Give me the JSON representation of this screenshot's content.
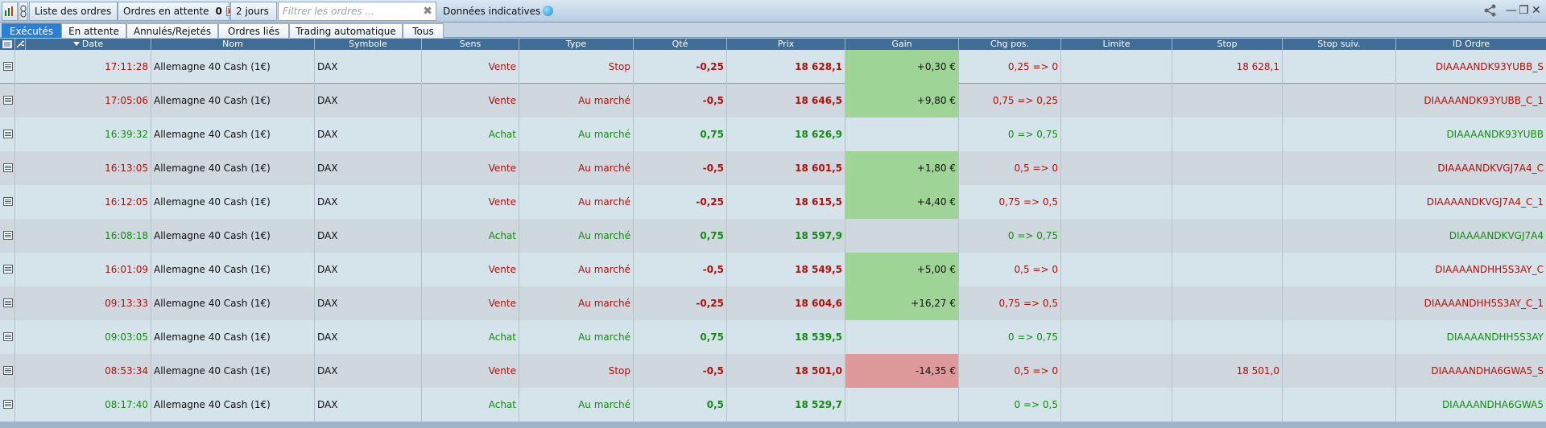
{
  "toolbar": {
    "list_title": "Liste des ordres",
    "pending_label": "Ordres en attente",
    "pending_count": "0",
    "period_label": "2 jours",
    "filter_placeholder": "Filtrer les ordres ...",
    "info_label": "Données indicatives"
  },
  "tabs": [
    "Exécutés",
    "En attente",
    "Annulés/Rejetés",
    "Ordres liés",
    "Trading automatique",
    "Tous"
  ],
  "active_tab": "Exécutés",
  "columns": [
    "Date",
    "Nom",
    "Symbole",
    "Sens",
    "Type",
    "Qté",
    "Prix",
    "Gain",
    "Chg pos.",
    "Limite",
    "Stop",
    "Stop suiv.",
    "ID Ordre"
  ],
  "colors": {
    "sell": "#b0100a",
    "buy": "#178a15",
    "gain_positive": "#9ed596",
    "gain_negative": "#de9a9a",
    "header": "#3f6d96",
    "active_tab": "#2a7fd4"
  },
  "rows": [
    {
      "date": "17:11:28",
      "name": "Allemagne 40 Cash (1€)",
      "symbol": "DAX",
      "side": "Vente",
      "type": "Stop",
      "qty": "-0,25",
      "price": "18  628,1",
      "gain": "+0,30 €",
      "gain_state": "pos",
      "chg_pos": "0,25 => 0",
      "limit": "",
      "stop": "18  628,1",
      "stop_suiv": "",
      "id": "DIAAAANDK93YUBB_S"
    },
    {
      "date": "17:05:06",
      "name": "Allemagne 40 Cash (1€)",
      "symbol": "DAX",
      "side": "Vente",
      "type": "Au marché",
      "qty": "-0,5",
      "price": "18  646,5",
      "gain": "+9,80 €",
      "gain_state": "pos",
      "chg_pos": "0,75 => 0,25",
      "limit": "",
      "stop": "",
      "stop_suiv": "",
      "id": "DIAAAANDK93YUBB_C_1"
    },
    {
      "date": "16:39:32",
      "name": "Allemagne 40 Cash (1€)",
      "symbol": "DAX",
      "side": "Achat",
      "type": "Au marché",
      "qty": "0,75",
      "price": "18  626,9",
      "gain": "",
      "gain_state": "none",
      "chg_pos": "0 => 0,75",
      "limit": "",
      "stop": "",
      "stop_suiv": "",
      "id": "DIAAAANDK93YUBB"
    },
    {
      "date": "16:13:05",
      "name": "Allemagne 40 Cash (1€)",
      "symbol": "DAX",
      "side": "Vente",
      "type": "Au marché",
      "qty": "-0,5",
      "price": "18  601,5",
      "gain": "+1,80 €",
      "gain_state": "pos",
      "chg_pos": "0,5 => 0",
      "limit": "",
      "stop": "",
      "stop_suiv": "",
      "id": "DIAAAANDKVGJ7A4_C"
    },
    {
      "date": "16:12:05",
      "name": "Allemagne 40 Cash (1€)",
      "symbol": "DAX",
      "side": "Vente",
      "type": "Au marché",
      "qty": "-0,25",
      "price": "18  615,5",
      "gain": "+4,40 €",
      "gain_state": "pos",
      "chg_pos": "0,75 => 0,5",
      "limit": "",
      "stop": "",
      "stop_suiv": "",
      "id": "DIAAAANDKVGJ7A4_C_1"
    },
    {
      "date": "16:08:18",
      "name": "Allemagne 40 Cash (1€)",
      "symbol": "DAX",
      "side": "Achat",
      "type": "Au marché",
      "qty": "0,75",
      "price": "18  597,9",
      "gain": "",
      "gain_state": "none",
      "chg_pos": "0 => 0,75",
      "limit": "",
      "stop": "",
      "stop_suiv": "",
      "id": "DIAAAANDKVGJ7A4"
    },
    {
      "date": "16:01:09",
      "name": "Allemagne 40 Cash (1€)",
      "symbol": "DAX",
      "side": "Vente",
      "type": "Au marché",
      "qty": "-0,5",
      "price": "18  549,5",
      "gain": "+5,00 €",
      "gain_state": "pos",
      "chg_pos": "0,5 => 0",
      "limit": "",
      "stop": "",
      "stop_suiv": "",
      "id": "DIAAAANDHH5S3AY_C"
    },
    {
      "date": "09:13:33",
      "name": "Allemagne 40 Cash (1€)",
      "symbol": "DAX",
      "side": "Vente",
      "type": "Au marché",
      "qty": "-0,25",
      "price": "18  604,6",
      "gain": "+16,27 €",
      "gain_state": "pos",
      "chg_pos": "0,75 => 0,5",
      "limit": "",
      "stop": "",
      "stop_suiv": "",
      "id": "DIAAAANDHH5S3AY_C_1"
    },
    {
      "date": "09:03:05",
      "name": "Allemagne 40 Cash (1€)",
      "symbol": "DAX",
      "side": "Achat",
      "type": "Au marché",
      "qty": "0,75",
      "price": "18  539,5",
      "gain": "",
      "gain_state": "none",
      "chg_pos": "0 => 0,75",
      "limit": "",
      "stop": "",
      "stop_suiv": "",
      "id": "DIAAAANDHH5S3AY"
    },
    {
      "date": "08:53:34",
      "name": "Allemagne 40 Cash (1€)",
      "symbol": "DAX",
      "side": "Vente",
      "type": "Stop",
      "qty": "-0,5",
      "price": "18  501,0",
      "gain": "-14,35 €",
      "gain_state": "neg",
      "chg_pos": "0,5 => 0",
      "limit": "",
      "stop": "18  501,0",
      "stop_suiv": "",
      "id": "DIAAAANDHA6GWA5_S"
    },
    {
      "date": "08:17:40",
      "name": "Allemagne 40 Cash (1€)",
      "symbol": "DAX",
      "side": "Achat",
      "type": "Au marché",
      "qty": "0,5",
      "price": "18  529,7",
      "gain": "",
      "gain_state": "none",
      "chg_pos": "0 => 0,5",
      "limit": "",
      "stop": "",
      "stop_suiv": "",
      "id": "DIAAAANDHA6GWA5"
    }
  ]
}
